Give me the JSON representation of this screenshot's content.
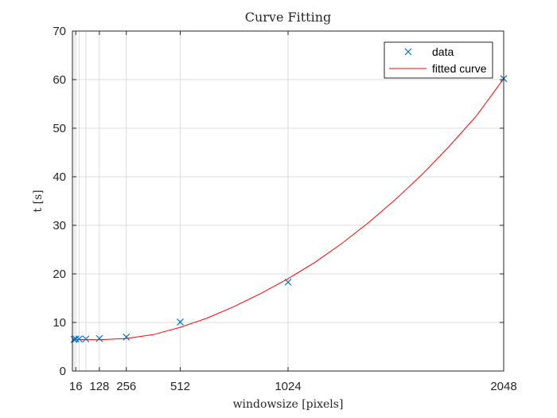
{
  "chart_data": {
    "type": "scatter",
    "title": "Curve Fitting",
    "xlabel": "windowsize [pixels]",
    "ylabel": "t [s]",
    "xlim": [
      0,
      2048
    ],
    "ylim": [
      0,
      70
    ],
    "xticks": [
      16,
      128,
      256,
      512,
      1024,
      2048
    ],
    "yticks": [
      0,
      10,
      20,
      30,
      40,
      50,
      60,
      70
    ],
    "grid": true,
    "legend_position": "top-right",
    "series": [
      {
        "name": "data",
        "kind": "markers",
        "marker": "x",
        "color": "#0072BD",
        "x": [
          8,
          16,
          32,
          64,
          128,
          256,
          512,
          1024,
          2048
        ],
        "y": [
          6.5,
          6.6,
          6.6,
          6.6,
          6.7,
          7.0,
          10.1,
          18.3,
          60.2
        ]
      },
      {
        "name": "fitted curve",
        "kind": "line",
        "color": "#FF0000",
        "x": [
          0,
          128,
          256,
          384,
          512,
          640,
          768,
          896,
          1024,
          1152,
          1280,
          1408,
          1536,
          1664,
          1792,
          1920,
          2048
        ],
        "y": [
          6.5,
          6.45,
          6.7,
          7.5,
          9.0,
          10.9,
          13.3,
          16.0,
          19.0,
          22.4,
          26.3,
          30.6,
          35.4,
          40.6,
          46.4,
          52.6,
          60.2
        ]
      }
    ]
  }
}
